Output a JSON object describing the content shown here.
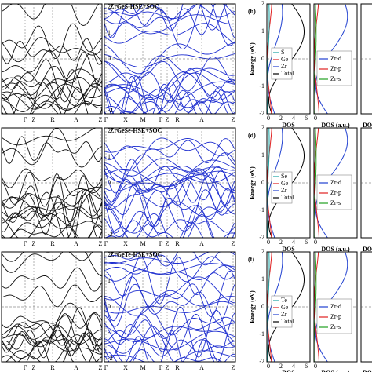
{
  "rows": [
    {
      "band_title": "ZrGeS-HSE+SOC",
      "panel_label": "(b)",
      "legend_atoms": [
        "S",
        "Ge",
        "Zr",
        "Total"
      ]
    },
    {
      "band_title": "ZrGeSe-HSE+SOC",
      "panel_label": "(d)",
      "legend_atoms": [
        "Se",
        "Ge",
        "Zr",
        "Total"
      ]
    },
    {
      "band_title": "ZrGeTe-HSE+SOC",
      "panel_label": "(f)",
      "legend_atoms": [
        "Te",
        "Ge",
        "Zr",
        "Total"
      ]
    }
  ],
  "kpath_left": [
    "Γ",
    "Z",
    "R",
    "A",
    "Z"
  ],
  "kpath_right": [
    "Γ",
    "X",
    "M",
    "Γ",
    "Z",
    "R",
    "A",
    "Z"
  ],
  "energy_ticks": [
    "2",
    "1",
    "0",
    "-1",
    "-2"
  ],
  "energy_label": "Energy (eV)",
  "dos_ticks": [
    "0",
    "2",
    "4",
    "6"
  ],
  "dos2_ticks": [
    "0"
  ],
  "dos_label": "DOS",
  "dos2_label": "DOS (a.u.)",
  "dos3_label": "DO",
  "legend_orbitals": [
    "Zr-d",
    "Zr-p",
    "Zr-s"
  ]
}
